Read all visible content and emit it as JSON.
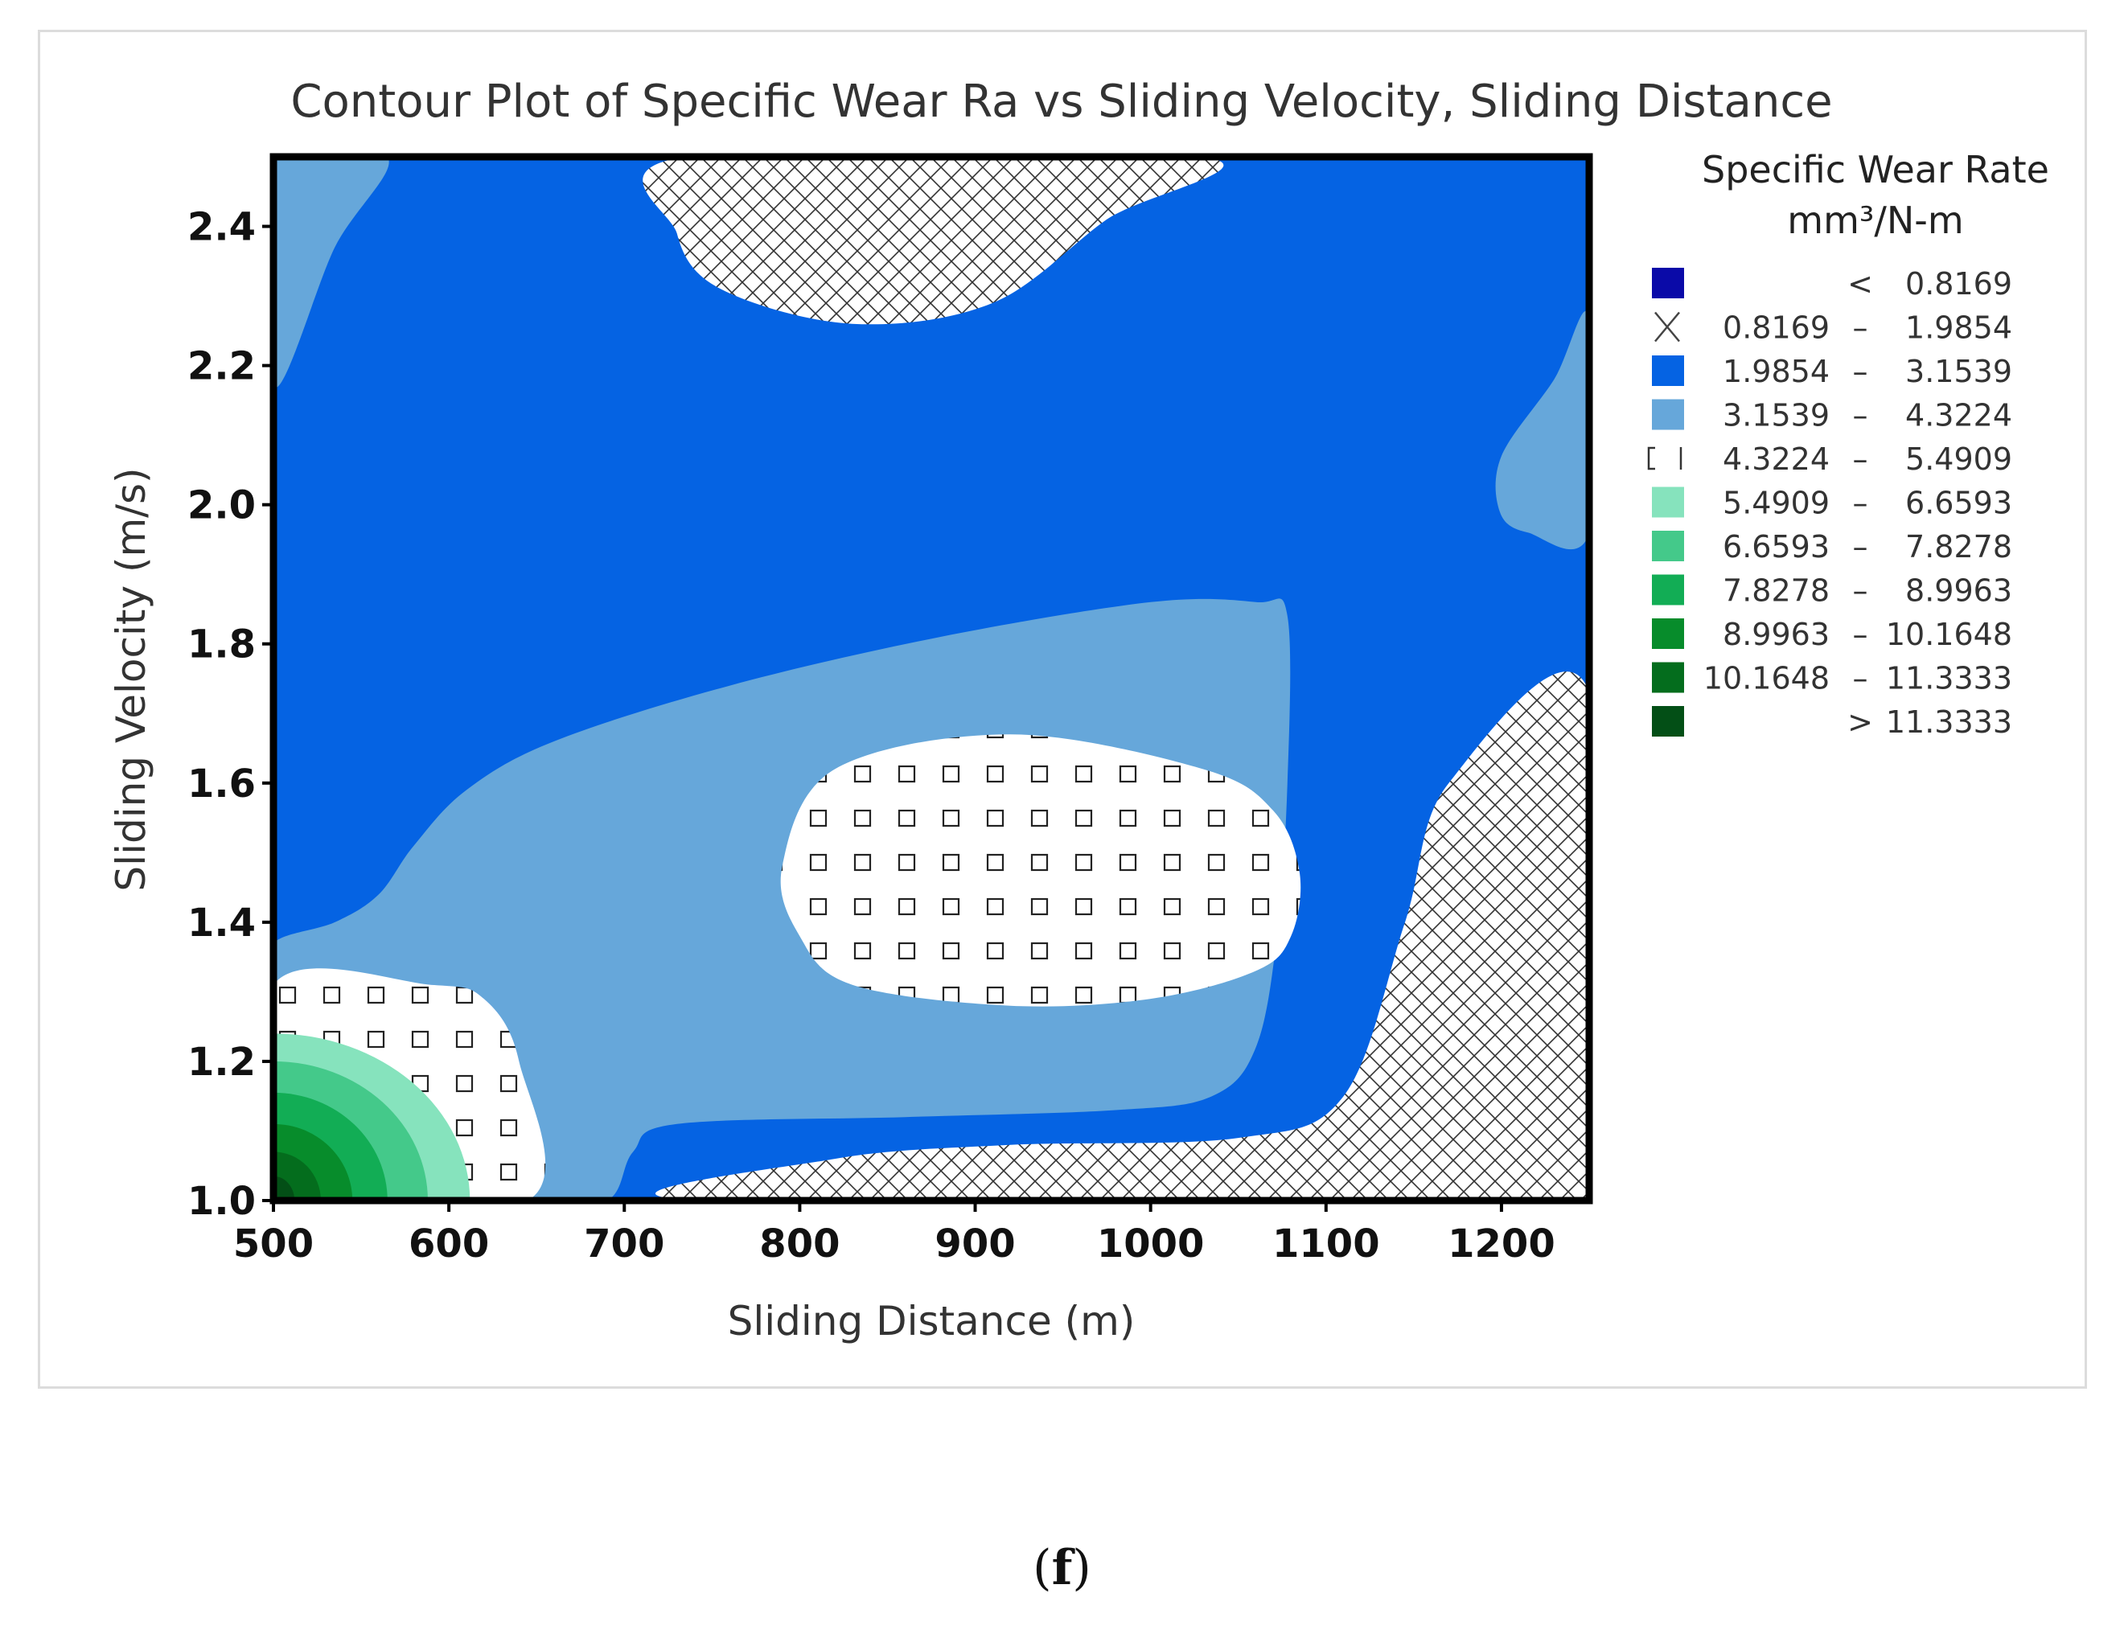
{
  "panel_label": {
    "open": "(",
    "letter": "f",
    "close": ")"
  },
  "colors": {
    "lt_0_8169": "#0a0aa8",
    "band_1_9854_3_1539": "#0563e3",
    "band_3_1539_4_3224": "#66a7da",
    "band_5_4909_6_6593": "#86e3bd",
    "band_6_6593_7_8278": "#44c98a",
    "band_7_8278_8_9963": "#12ad55",
    "band_8_9963_10_1648": "#078c2b",
    "band_10_1648_11_3333": "#046d1d",
    "gt_11_3333": "#034f16",
    "hatch_line": "#333333",
    "frame_border": "#000000"
  },
  "chart_data": {
    "type": "contour",
    "title": "Contour Plot of Specific Wear Ra vs Sliding Velocity, Sliding Distance",
    "xlabel": "Sliding Distance (m)",
    "ylabel": "Sliding Velocity (m/s)",
    "xlim": [
      500,
      1250
    ],
    "ylim": [
      1.0,
      2.5
    ],
    "xticks": [
      500,
      600,
      700,
      800,
      900,
      1000,
      1100,
      1200
    ],
    "xtick_labels": [
      "500",
      "600",
      "700",
      "800",
      "900",
      "1000",
      "1100",
      "1200"
    ],
    "yticks": [
      1.0,
      1.2,
      1.4,
      1.6,
      1.8,
      2.0,
      2.2,
      2.4
    ],
    "ytick_labels": [
      "1.0",
      "1.2",
      "1.4",
      "1.6",
      "1.8",
      "2.0",
      "2.2",
      "2.4"
    ],
    "legend": {
      "title_line1": "Specific Wear Rate",
      "title_line2": "mm³/N-m",
      "position": "right",
      "entries": [
        {
          "low": "",
          "sep": "<",
          "high": "0.8169",
          "swatch": "solid",
          "color": "#0a0aa8"
        },
        {
          "low": "0.8169",
          "sep": "–",
          "high": "1.9854",
          "swatch": "crosshatch"
        },
        {
          "low": "1.9854",
          "sep": "–",
          "high": "3.1539",
          "swatch": "solid",
          "color": "#0563e3"
        },
        {
          "low": "3.1539",
          "sep": "–",
          "high": "4.3224",
          "swatch": "solid",
          "color": "#66a7da"
        },
        {
          "low": "4.3224",
          "sep": "–",
          "high": "5.4909",
          "swatch": "squares"
        },
        {
          "low": "5.4909",
          "sep": "–",
          "high": "6.6593",
          "swatch": "solid",
          "color": "#86e3bd"
        },
        {
          "low": "6.6593",
          "sep": "–",
          "high": "7.8278",
          "swatch": "solid",
          "color": "#44c98a"
        },
        {
          "low": "7.8278",
          "sep": "–",
          "high": "8.9963",
          "swatch": "solid",
          "color": "#12ad55"
        },
        {
          "low": "8.9963",
          "sep": "–",
          "high": "10.1648",
          "swatch": "solid",
          "color": "#078c2b"
        },
        {
          "low": "10.1648",
          "sep": "–",
          "high": "11.3333",
          "swatch": "solid",
          "color": "#046d1d"
        },
        {
          "low": "",
          "sep": ">",
          "high": "11.3333",
          "swatch": "solid",
          "color": "#034f16"
        }
      ]
    },
    "regions": [
      {
        "band": "0.8169–1.9854",
        "location": "top center",
        "points": [
          [
            735,
            2.5
          ],
          [
            1030,
            2.5
          ],
          [
            975,
            2.41
          ],
          [
            910,
            2.29
          ],
          [
            830,
            2.26
          ],
          [
            755,
            2.31
          ],
          [
            730,
            2.39
          ]
        ]
      },
      {
        "band": "0.8169–1.9854",
        "location": "lower right",
        "points": [
          [
            740,
            1.0
          ],
          [
            820,
            1.06
          ],
          [
            920,
            1.08
          ],
          [
            1050,
            1.09
          ],
          [
            1110,
            1.15
          ],
          [
            1145,
            1.4
          ],
          [
            1170,
            1.6
          ],
          [
            1250,
            1.73
          ],
          [
            1250,
            1.0
          ]
        ]
      },
      {
        "band": "3.1539–4.3224",
        "location": "upper left corner",
        "points": [
          [
            500,
            2.5
          ],
          [
            565,
            2.5
          ],
          [
            535,
            2.37
          ],
          [
            500,
            2.17
          ]
        ]
      },
      {
        "band": "3.1539–4.3224",
        "location": "right edge",
        "points": [
          [
            1250,
            2.27
          ],
          [
            1230,
            2.18
          ],
          [
            1200,
            2.07
          ],
          [
            1199,
            1.99
          ],
          [
            1215,
            1.96
          ],
          [
            1250,
            1.96
          ]
        ]
      },
      {
        "band": "3.1539–4.3224",
        "location": "central band",
        "points": [
          [
            500,
            1.37
          ],
          [
            535,
            1.4
          ],
          [
            560,
            1.44
          ],
          [
            580,
            1.51
          ],
          [
            610,
            1.59
          ],
          [
            660,
            1.66
          ],
          [
            760,
            1.74
          ],
          [
            880,
            1.81
          ],
          [
            1000,
            1.86
          ],
          [
            1060,
            1.86
          ],
          [
            1078,
            1.84
          ],
          [
            1078,
            1.6
          ],
          [
            1072,
            1.38
          ],
          [
            1060,
            1.22
          ],
          [
            1035,
            1.15
          ],
          [
            980,
            1.13
          ],
          [
            860,
            1.12
          ],
          [
            730,
            1.11
          ],
          [
            705,
            1.07
          ],
          [
            690,
            1.0
          ],
          [
            645,
            1.0
          ],
          [
            640,
            1.2
          ],
          [
            620,
            1.29
          ],
          [
            590,
            1.31
          ],
          [
            500,
            1.31
          ]
        ]
      },
      {
        "band": "4.3224–5.4909",
        "location": "center",
        "points": [
          [
            800,
            1.38
          ],
          [
            830,
            1.31
          ],
          [
            920,
            1.28
          ],
          [
            1000,
            1.29
          ],
          [
            1060,
            1.33
          ],
          [
            1080,
            1.38
          ],
          [
            1085,
            1.47
          ],
          [
            1070,
            1.56
          ],
          [
            1030,
            1.62
          ],
          [
            920,
            1.67
          ],
          [
            820,
            1.62
          ],
          [
            790,
            1.48
          ]
        ]
      },
      {
        "band": "4.3224–5.4909",
        "location": "lower left",
        "points": [
          [
            500,
            1.31
          ],
          [
            590,
            1.31
          ],
          [
            620,
            1.29
          ],
          [
            640,
            1.2
          ],
          [
            645,
            1.0
          ],
          [
            500,
            1.0
          ]
        ]
      },
      {
        "band": "5.4909–6.6593",
        "location": "lower left corner",
        "radius_x": 112,
        "radius_y": 0.24
      },
      {
        "band": "6.6593–7.8278",
        "location": "lower left corner",
        "radius_x": 88,
        "radius_y": 0.2
      },
      {
        "band": "7.8278–8.9963",
        "location": "lower left corner",
        "radius_x": 65,
        "radius_y": 0.155
      },
      {
        "band": "8.9963–10.1648",
        "location": "lower left corner",
        "radius_x": 45,
        "radius_y": 0.11
      },
      {
        "band": "10.1648–11.3333",
        "location": "lower left corner",
        "radius_x": 27,
        "radius_y": 0.07
      },
      {
        "band": "> 11.3333",
        "location": "lower left corner",
        "radius_x": 12,
        "radius_y": 0.035
      }
    ]
  }
}
